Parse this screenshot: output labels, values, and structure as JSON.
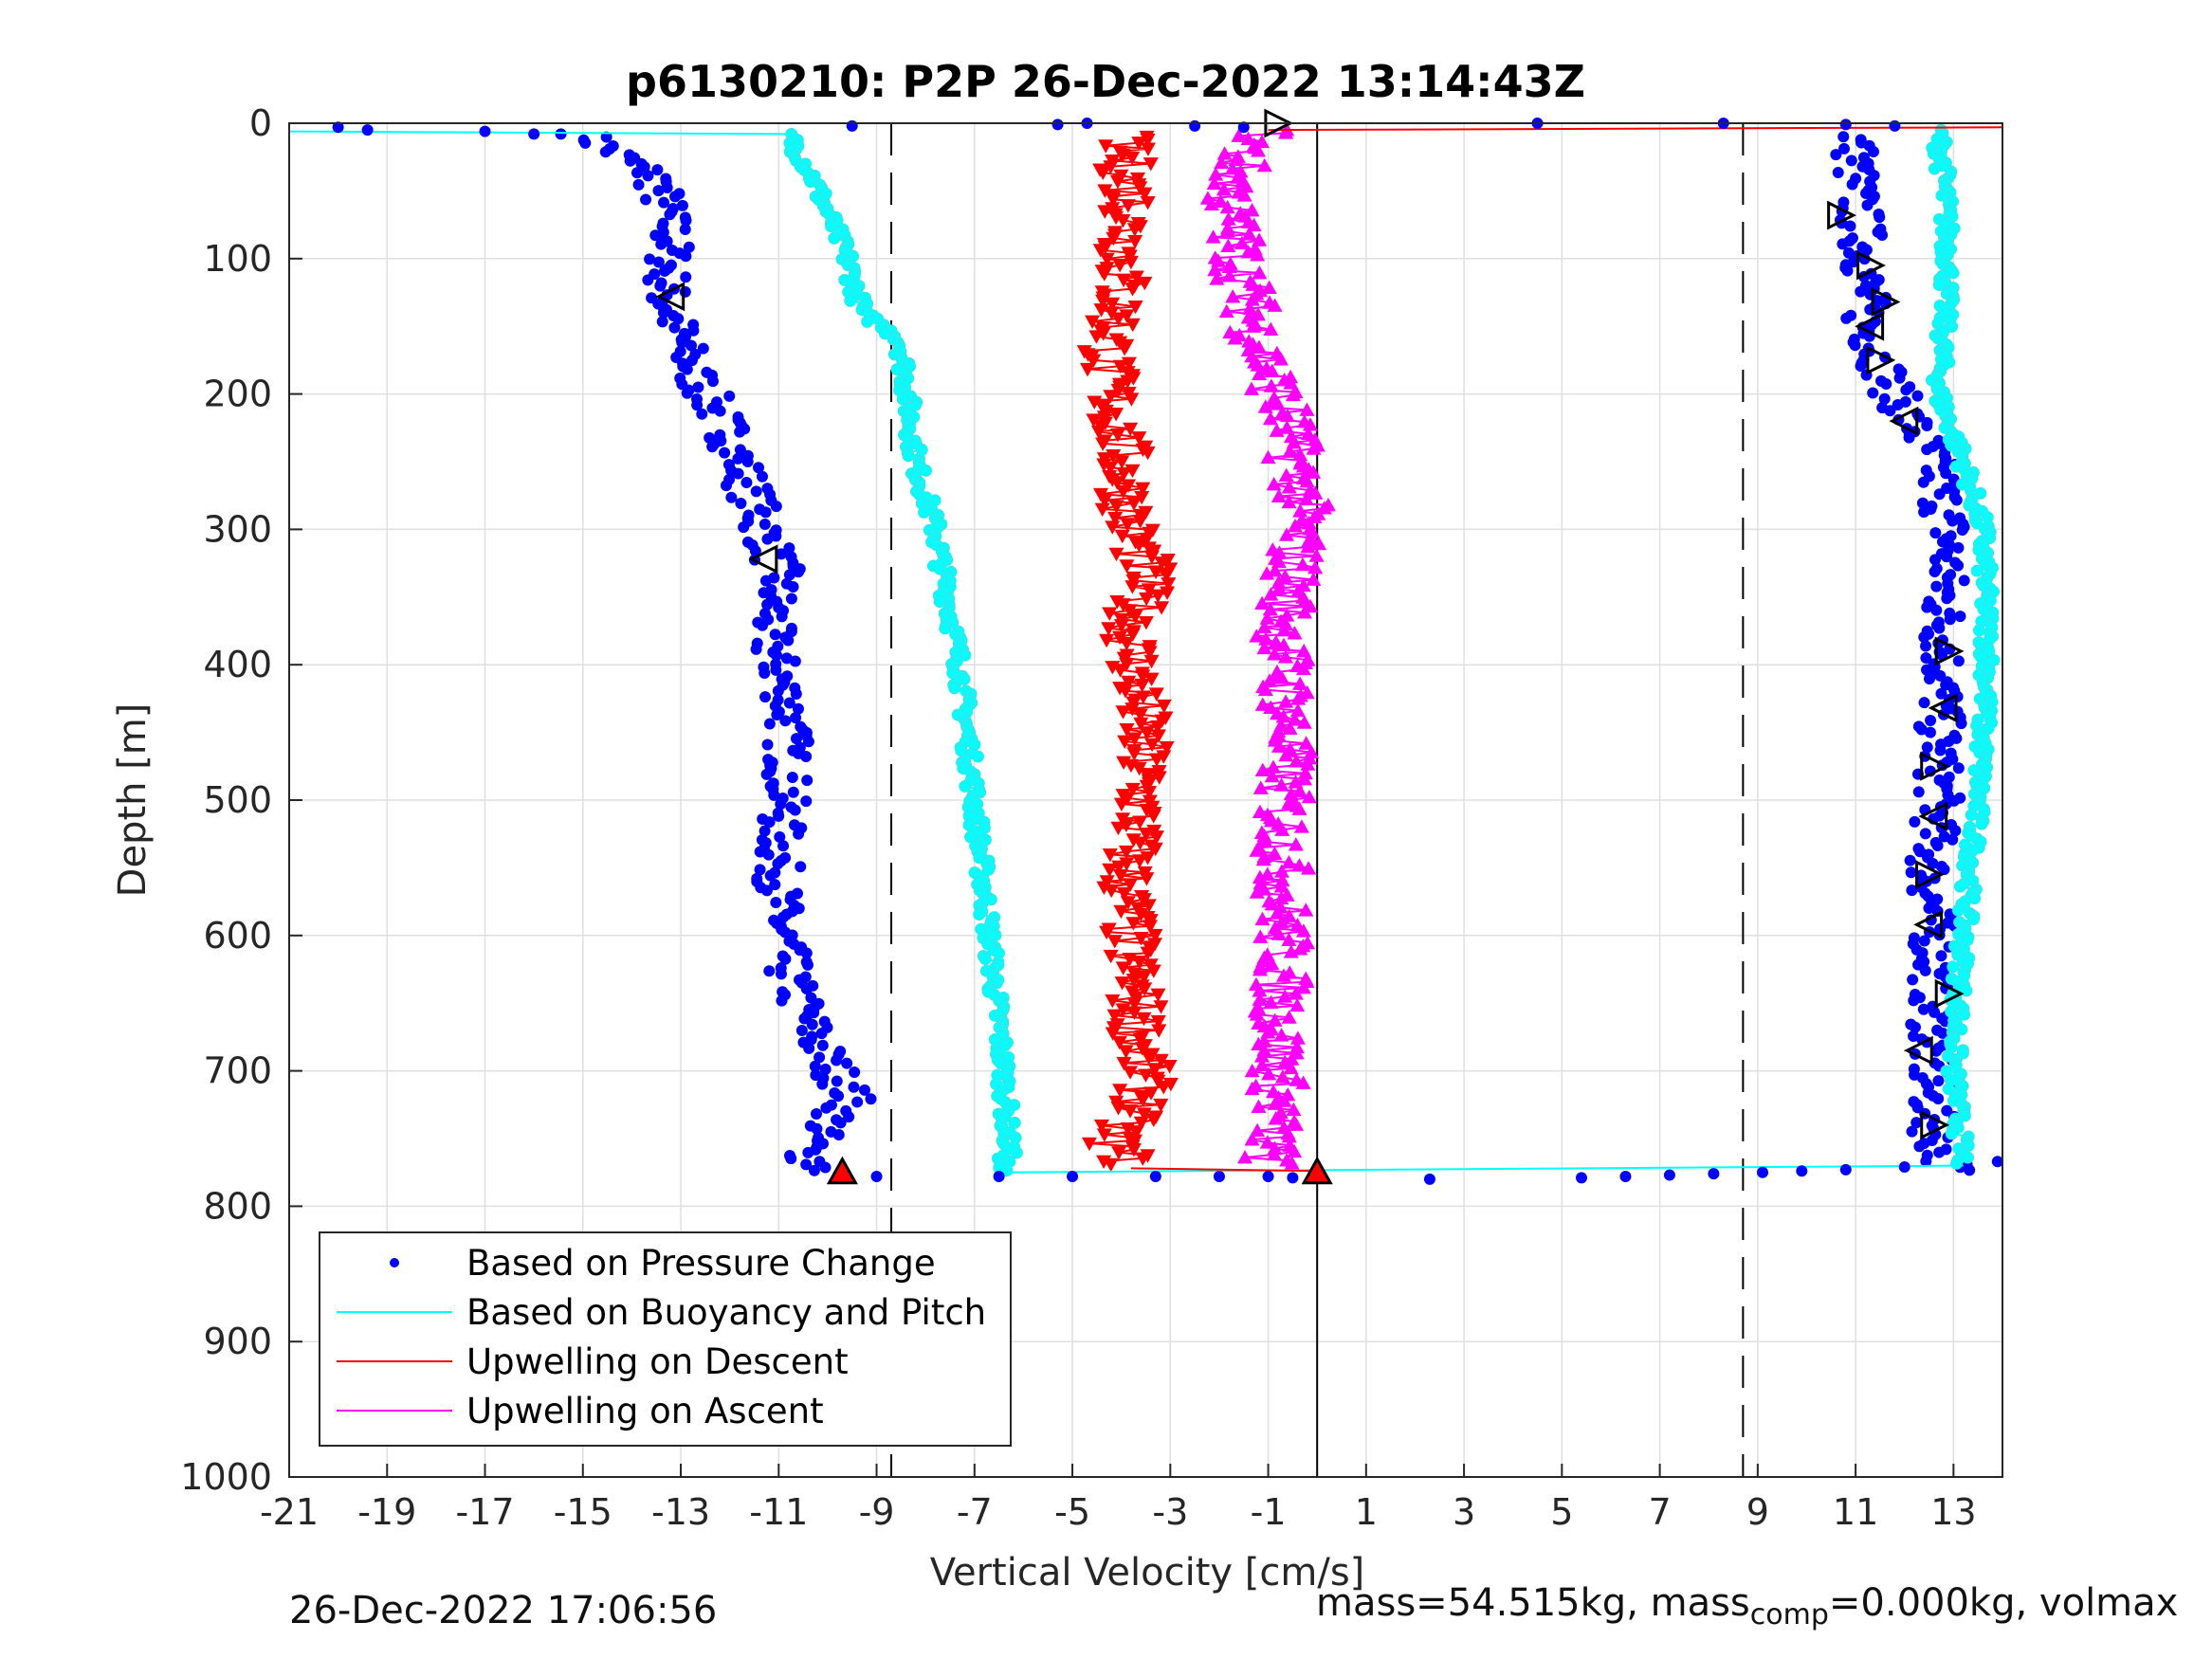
{
  "chart_data": {
    "type": "scatter",
    "title": "p6130210: P2P 26-Dec-2022 13:14:43Z",
    "xlabel": "Vertical Velocity [cm/s]",
    "ylabel": "Depth [m]",
    "xlim": [
      -21,
      14
    ],
    "ylim": [
      0,
      1000
    ],
    "y_reversed": true,
    "grid": true,
    "x_ticks": [
      -21,
      -19,
      -17,
      -15,
      -13,
      -11,
      -9,
      -7,
      -5,
      -3,
      -1,
      1,
      3,
      5,
      7,
      9,
      11,
      13
    ],
    "x_tick_labels": [
      "-21",
      "-19",
      "-17",
      "-15",
      "-13",
      "-11",
      "-9",
      "-7",
      "-5",
      "-3",
      "-1",
      "1",
      "3",
      "5",
      "7",
      "9",
      "11",
      "13"
    ],
    "y_ticks": [
      0,
      100,
      200,
      300,
      400,
      500,
      600,
      700,
      800,
      900,
      1000
    ],
    "y_tick_labels": [
      "0",
      "100",
      "200",
      "300",
      "400",
      "500",
      "600",
      "700",
      "800",
      "900",
      "1000"
    ],
    "legend_position": "bottom-left",
    "legend": [
      {
        "label": "Based on Pressure Change",
        "marker": "dot",
        "color": "#0000ff"
      },
      {
        "label": "Based on Buoyancy and Pitch",
        "marker": "line",
        "color": "#00ffff"
      },
      {
        "label": "Upwelling on Descent",
        "marker": "line",
        "color": "#ff0000"
      },
      {
        "label": "Upwelling on Ascent",
        "marker": "line",
        "color": "#ff00ff"
      }
    ],
    "reference_lines": {
      "dashed_x": [
        -8.7,
        8.7
      ],
      "solid_x": [
        0
      ]
    },
    "series": [
      {
        "name": "Based on Pressure Change",
        "branch": "descent",
        "color": "#0000ff",
        "depth": [
          8,
          40,
          80,
          130,
          180,
          230,
          280,
          330,
          380,
          430,
          480,
          530,
          580,
          630,
          680,
          720,
          760,
          775
        ],
        "velocity": [
          -15,
          -13.5,
          -13.2,
          -13.3,
          -12.8,
          -12,
          -11.5,
          -11,
          -11.2,
          -10.8,
          -10.8,
          -11,
          -11,
          -10.8,
          -10.2,
          -9.5,
          -10.5,
          -10
        ]
      },
      {
        "name": "Based on Pressure Change",
        "branch": "ascent",
        "color": "#0000ff",
        "depth": [
          775,
          750,
          700,
          650,
          600,
          550,
          500,
          450,
          400,
          350,
          300,
          250,
          200,
          150,
          100,
          50,
          10
        ],
        "velocity": [
          13,
          12.6,
          12.5,
          12.6,
          12.6,
          12.5,
          12.7,
          12.7,
          12.8,
          12.8,
          12.9,
          12.6,
          11.8,
          11.2,
          11.2,
          11,
          11
        ]
      },
      {
        "name": "Based on Buoyancy and Pitch",
        "branch": "descent",
        "color": "#00ffff",
        "depth": [
          8,
          40,
          100,
          140,
          160,
          250,
          300,
          400,
          500,
          600,
          700,
          760,
          775
        ],
        "velocity": [
          -10.8,
          -10.3,
          -9.6,
          -9.3,
          -8.5,
          -8.2,
          -7.8,
          -7.3,
          -7,
          -6.7,
          -6.4,
          -6.3,
          -6.5
        ]
      },
      {
        "name": "Based on Buoyancy and Pitch",
        "branch": "ascent",
        "color": "#00ffff",
        "depth": [
          770,
          700,
          600,
          500,
          400,
          300,
          250,
          200,
          100,
          40,
          5
        ],
        "velocity": [
          13.2,
          13,
          13.2,
          13.5,
          13.7,
          13.6,
          13.2,
          12.7,
          12.9,
          12.8,
          12.7
        ]
      },
      {
        "name": "Upwelling on Descent",
        "color": "#ff0000",
        "depth": [
          10,
          60,
          120,
          180,
          240,
          300,
          330,
          380,
          440,
          500,
          560,
          620,
          680,
          720,
          750,
          770
        ],
        "velocity": [
          -4,
          -3.8,
          -4,
          -4.3,
          -4,
          -3.8,
          -3.5,
          -3.8,
          -3.6,
          -3.6,
          -3.9,
          -3.8,
          -3.6,
          -3.5,
          -4.2,
          -3.8
        ]
      },
      {
        "name": "Upwelling on Ascent",
        "color": "#ff00ff",
        "depth": [
          770,
          720,
          680,
          620,
          560,
          500,
          440,
          380,
          330,
          280,
          220,
          160,
          100,
          60,
          20,
          5
        ],
        "velocity": [
          -1,
          -0.8,
          -0.8,
          -0.7,
          -0.7,
          -0.7,
          -0.6,
          -0.7,
          -0.5,
          -0.3,
          -0.6,
          -1.2,
          -1.6,
          -1.8,
          -1.5,
          -1
        ]
      }
    ]
  },
  "footer": {
    "timestamp": "26-Dec-2022 17:06:56",
    "mass_text": "mass=54.515kg, mass",
    "mass_sub": "comp",
    "mass_tail": "=0.000kg, volmax"
  }
}
